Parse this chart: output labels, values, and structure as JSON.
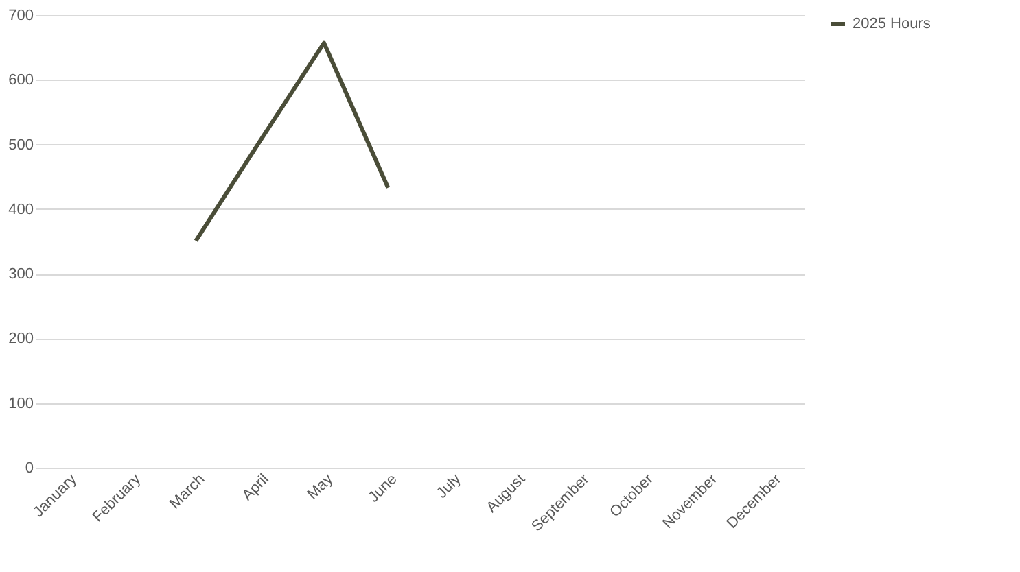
{
  "chart_data": {
    "type": "line",
    "categories": [
      "January",
      "February",
      "March",
      "April",
      "May",
      "June",
      "July",
      "August",
      "September",
      "October",
      "November",
      "December"
    ],
    "series": [
      {
        "name": "2025 Hours",
        "color": "#4a4d38",
        "values": [
          null,
          null,
          351,
          505,
          657,
          433,
          null,
          null,
          null,
          null,
          null,
          null
        ]
      }
    ],
    "ylim": [
      0,
      700
    ],
    "yticks": [
      0,
      100,
      200,
      300,
      400,
      500,
      600,
      700
    ],
    "grid": "y",
    "legend": "right",
    "marker": "none",
    "line_style": "solid"
  }
}
